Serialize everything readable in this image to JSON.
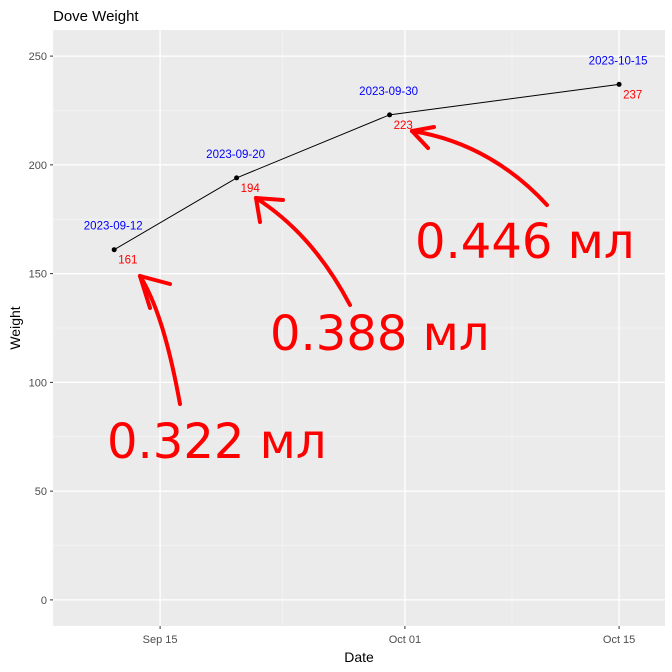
{
  "chart_data": {
    "type": "line",
    "title": "Dove Weight",
    "xlabel": "Date",
    "ylabel": "Weight",
    "x_type": "date",
    "xlim": [
      "2023-09-08",
      "2023-10-18"
    ],
    "ylim": [
      -12,
      262
    ],
    "x_ticks": [
      {
        "date": "2023-09-15",
        "label": "Sep 15"
      },
      {
        "date": "2023-10-01",
        "label": "Oct 01"
      },
      {
        "date": "2023-10-15",
        "label": "Oct 15"
      }
    ],
    "x_minor_ticks": [
      "2023-09-08",
      "2023-09-23",
      "2023-10-08"
    ],
    "y_ticks": [
      0,
      50,
      100,
      150,
      200,
      250
    ],
    "y_minor_ticks": [
      25,
      75,
      125,
      175,
      225
    ],
    "grid": true,
    "series": [
      {
        "points": [
          {
            "x": "2023-09-12",
            "y": 161,
            "date_label": "2023-09-12",
            "value_label": "161"
          },
          {
            "x": "2023-09-20",
            "y": 194,
            "date_label": "2023-09-20",
            "value_label": "194"
          },
          {
            "x": "2023-09-30",
            "y": 223,
            "date_label": "2023-09-30",
            "value_label": "223"
          },
          {
            "x": "2023-10-15",
            "y": 237,
            "date_label": "2023-10-15",
            "value_label": "237"
          }
        ]
      }
    ],
    "annotations": [
      {
        "text": "0.322 мл",
        "points_to": "2023-09-12"
      },
      {
        "text": "0.388 мл",
        "points_to": "2023-09-20"
      },
      {
        "text": "0.446 мл",
        "points_to": "2023-09-30"
      }
    ],
    "colors": {
      "panel": "#ebebeb",
      "grid_major": "#ffffff",
      "grid_minor": "#f5f5f5",
      "line": "#000000",
      "date_label": "#0000ff",
      "value_label": "#ff0000",
      "annotation": "#ff0000"
    }
  }
}
